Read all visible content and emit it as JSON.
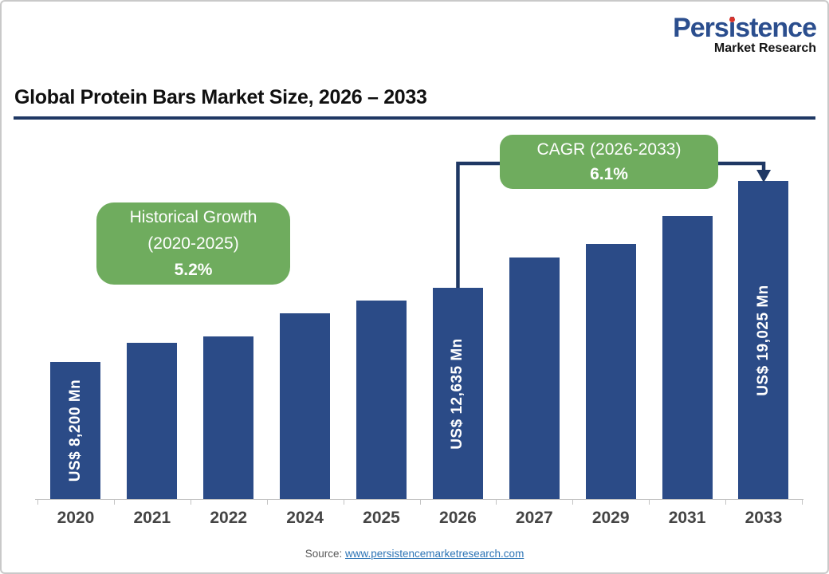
{
  "logo": {
    "brand_pre": "Pers",
    "brand_i": "i",
    "brand_post": "stence",
    "subtitle": "Market Research",
    "brand_color": "#2B4E8E",
    "dot_color": "#D9342B"
  },
  "title": "Global Protein Bars Market Size, 2026 – 2033",
  "annotations": {
    "historical": {
      "line1": "Historical Growth",
      "line2": "(2020-2025)",
      "line3": "5.2%"
    },
    "cagr": {
      "line1": "CAGR (2026-2033)",
      "line2": "6.1%"
    }
  },
  "source": {
    "label": "Source:",
    "link_text": "www.persistencemarketresearch.com"
  },
  "colors": {
    "bar": "#2B4B87",
    "accent_green": "#6FAC5E",
    "connector": "#1F3864",
    "link": "#2E75B6",
    "title_rule": "#1F3864"
  },
  "chart_data": {
    "type": "bar",
    "title": "Global Protein Bars Market Size, 2026 – 2033",
    "unit": "US$ Mn",
    "categories": [
      "2020",
      "2021",
      "2022",
      "2024",
      "2025",
      "2026",
      "2027",
      "2029",
      "2031",
      "2033"
    ],
    "values": [
      8200,
      9350,
      9750,
      11100,
      11850,
      12635,
      14450,
      15250,
      16950,
      19025
    ],
    "bar_labels": [
      "US$ 8,200 Mn",
      "",
      "",
      "",
      "",
      "US$ 12,635 Mn",
      "",
      "",
      "",
      "US$ 19,025 Mn"
    ],
    "labeled_points": {
      "2020": 8200,
      "2026": 12635,
      "2033": 19025
    },
    "ylim": [
      0,
      19025
    ],
    "grid": false,
    "legend": false,
    "annotations": [
      "Historical Growth (2020-2025) 5.2%",
      "CAGR (2026-2033) 6.1%"
    ]
  }
}
